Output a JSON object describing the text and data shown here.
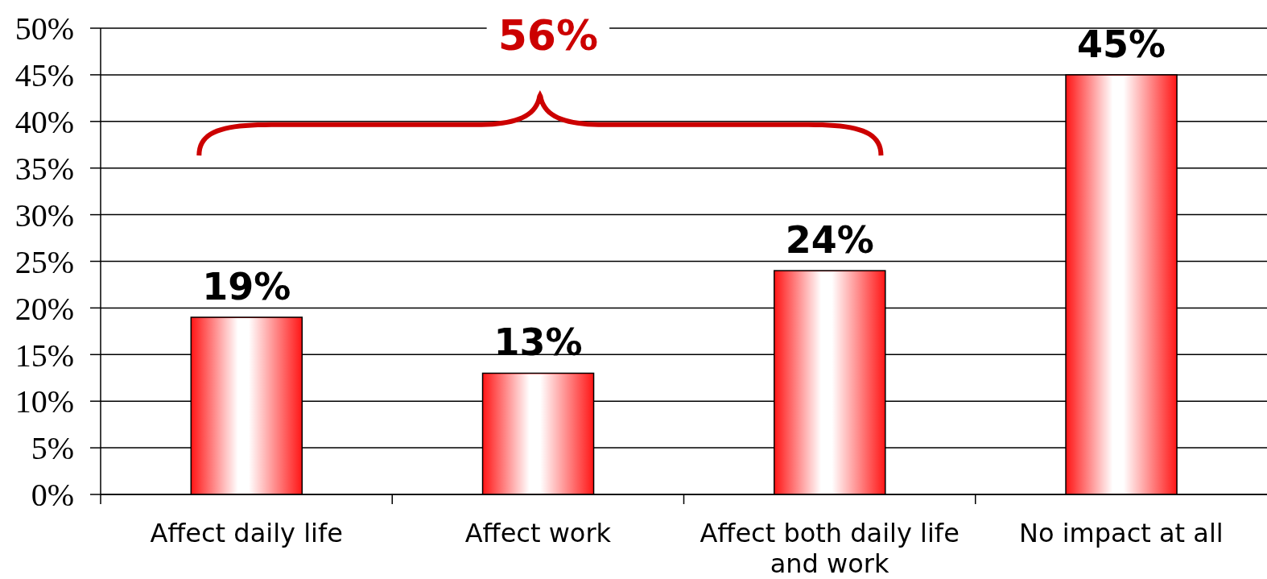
{
  "chart_data": {
    "type": "bar",
    "categories": [
      "Affect daily life",
      "Affect work",
      "Affect both daily life and work",
      "No impact at all"
    ],
    "values": [
      19,
      13,
      24,
      45
    ],
    "value_labels": [
      "19%",
      "13%",
      "24%",
      "45%"
    ],
    "color": "#ff0000",
    "ylim": [
      0,
      50
    ],
    "yticks": [
      {
        "value": 0,
        "label": "0%"
      },
      {
        "value": 5,
        "label": "5%"
      },
      {
        "value": 10,
        "label": "10%"
      },
      {
        "value": 15,
        "label": "15%"
      },
      {
        "value": 20,
        "label": "20%"
      },
      {
        "value": 25,
        "label": "25%"
      },
      {
        "value": 30,
        "label": "30%"
      },
      {
        "value": 35,
        "label": "35%"
      },
      {
        "value": 40,
        "label": "40%"
      },
      {
        "value": 45,
        "label": "45%"
      },
      {
        "value": 50,
        "label": "50%"
      }
    ],
    "grid": "y",
    "annotations": [
      "56%"
    ]
  }
}
